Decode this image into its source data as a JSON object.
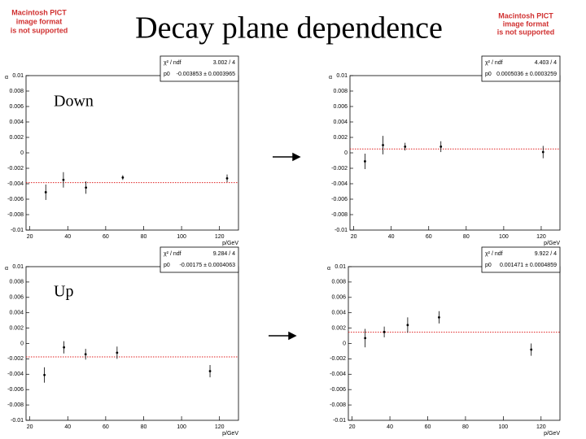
{
  "title": "Decay plane dependence",
  "labels": [
    "Down",
    "Up"
  ],
  "placeholder": [
    "Macintosh PICT",
    "image format",
    "is not supported"
  ],
  "chart_data": [
    {
      "type": "scatter",
      "y_label": "α",
      "x_label": "p/GeV",
      "x": [
        28.4,
        37.7,
        49.6,
        69,
        124
      ],
      "values": [
        -0.0051,
        -0.0035,
        -0.0045,
        -0.0032,
        -0.0033
      ],
      "errors": [
        0.001,
        0.001,
        0.0008,
        0.0003,
        0.0005
      ],
      "fit": -0.003853,
      "fit_color": "#e02020",
      "stats": [
        {
          "name": "χ² / ndf",
          "value": "3.002 / 4"
        },
        {
          "name": "p0",
          "value": "-0.003853 ± 0.0003965"
        }
      ],
      "xlim": [
        18,
        130
      ],
      "xticks": [
        20,
        40,
        60,
        80,
        100,
        120
      ],
      "ylim": [
        -0.01,
        0.01
      ],
      "yticks": [
        -0.01,
        -0.008,
        -0.006,
        -0.004,
        -0.002,
        0,
        0.002,
        0.004,
        0.006,
        0.008,
        0.01
      ]
    },
    {
      "type": "scatter",
      "y_label": "α",
      "x_label": "p/GeV",
      "x": [
        26,
        35.6,
        47.4,
        66.5,
        121
      ],
      "values": [
        -0.0011,
        0.001,
        0.0008,
        0.0008,
        0.0001
      ],
      "errors": [
        0.001,
        0.0012,
        0.0005,
        0.0007,
        0.0008
      ],
      "fit": 0.0005036,
      "fit_color": "#e02020",
      "stats": [
        {
          "name": "χ² / ndf",
          "value": "4.403 / 4"
        },
        {
          "name": "p0",
          "value": "0.0005036 ± 0.0003259"
        }
      ],
      "xlim": [
        18,
        130
      ],
      "xticks": [
        20,
        40,
        60,
        80,
        100,
        120
      ],
      "ylim": [
        -0.01,
        0.01
      ],
      "yticks": [
        -0.01,
        -0.008,
        -0.006,
        -0.004,
        -0.002,
        0,
        0.002,
        0.004,
        0.006,
        0.008,
        0.01
      ]
    },
    {
      "type": "scatter",
      "y_label": "α",
      "x_label": "p/GeV",
      "x": [
        27.7,
        38,
        49.4,
        66,
        115
      ],
      "values": [
        -0.0041,
        -0.0005,
        -0.0014,
        -0.0012,
        -0.0036
      ],
      "errors": [
        0.001,
        0.0008,
        0.0007,
        0.0008,
        0.0008
      ],
      "fit": -0.00175,
      "fit_color": "#e02020",
      "stats": [
        {
          "name": "χ² / ndf",
          "value": "9.284 / 4"
        },
        {
          "name": "p0",
          "value": "-0.00175 ± 0.0004063"
        }
      ],
      "xlim": [
        18,
        130
      ],
      "xticks": [
        20,
        40,
        60,
        80,
        100,
        120
      ],
      "ylim": [
        -0.01,
        0.01
      ],
      "yticks": [
        -0.01,
        -0.008,
        -0.006,
        -0.004,
        -0.002,
        0,
        0.002,
        0.004,
        0.006,
        0.008,
        0.01
      ]
    },
    {
      "type": "scatter",
      "y_label": "α",
      "x_label": "p/GeV",
      "x": [
        26.9,
        37,
        49.4,
        66,
        114.8
      ],
      "values": [
        0.0007,
        0.0015,
        0.0024,
        0.0034,
        -0.0008
      ],
      "errors": [
        0.0012,
        0.0007,
        0.001,
        0.0008,
        0.0008
      ],
      "fit": 0.001471,
      "fit_color": "#e02020",
      "stats": [
        {
          "name": "χ² / ndf",
          "value": "9.922 / 4"
        },
        {
          "name": "p0",
          "value": "0.001471 ± 0.0004859"
        }
      ],
      "xlim": [
        18,
        130
      ],
      "xticks": [
        20,
        40,
        60,
        80,
        100,
        120
      ],
      "ylim": [
        -0.01,
        0.01
      ],
      "yticks": [
        -0.01,
        -0.008,
        -0.006,
        -0.004,
        -0.002,
        0,
        0.002,
        0.004,
        0.006,
        0.008,
        0.01
      ]
    }
  ]
}
